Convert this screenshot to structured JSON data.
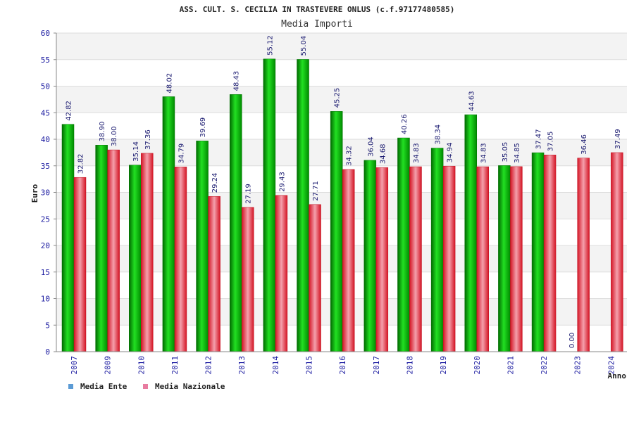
{
  "chart_data": {
    "type": "bar",
    "title": "ASS. CULT. S. CECILIA IN TRASTEVERE ONLUS (c.f.97177480585)",
    "subtitle": "Media Importi",
    "ylabel": "Euro",
    "xlabel": "Anno",
    "ylim": [
      0,
      60
    ],
    "yticks": [
      "0",
      "5",
      "10",
      "15",
      "20",
      "25",
      "30",
      "35",
      "40",
      "45",
      "50",
      "55",
      "60"
    ],
    "grid": true,
    "legend_position": "bottom-left",
    "categories": [
      "2007",
      "2009",
      "2010",
      "2011",
      "2012",
      "2013",
      "2014",
      "2015",
      "2016",
      "2017",
      "2018",
      "2019",
      "2020",
      "2021",
      "2022",
      "2023",
      "2024"
    ],
    "series": [
      {
        "name": "Media Ente",
        "legend_color": "#5b9bd5",
        "bar_color": "#00b000",
        "values": [
          42.82,
          38.9,
          35.14,
          48.02,
          39.69,
          48.43,
          55.12,
          55.04,
          45.25,
          36.04,
          40.26,
          38.34,
          44.63,
          35.05,
          37.47,
          0.0,
          null
        ],
        "labels": [
          "42.82",
          "38.90",
          "35.14",
          "48.02",
          "39.69",
          "48.43",
          "55.12",
          "55.04",
          "45.25",
          "36.04",
          "40.26",
          "38.34",
          "44.63",
          "35.05",
          "37.47",
          "0.00",
          null
        ]
      },
      {
        "name": "Media Nazionale",
        "legend_color": "#e87ca0",
        "bar_color": "#e02030",
        "values": [
          32.82,
          38.0,
          37.36,
          34.79,
          29.24,
          27.19,
          29.43,
          27.71,
          34.32,
          34.68,
          34.83,
          34.94,
          34.83,
          34.85,
          37.05,
          36.46,
          37.49
        ],
        "labels": [
          "32.82",
          "38.00",
          "37.36",
          "34.79",
          "29.24",
          "27.19",
          "29.43",
          "27.71",
          "34.32",
          "34.68",
          "34.83",
          "34.94",
          "34.83",
          "34.85",
          "37.05",
          "36.46",
          "37.49"
        ]
      }
    ]
  }
}
